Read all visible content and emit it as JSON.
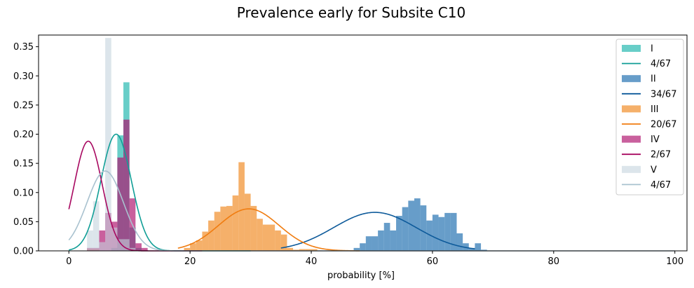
{
  "chart_data": {
    "type": "histogram",
    "title": "Prevalence early for Subsite C10",
    "xlabel": "probability [%]",
    "ylabel": "",
    "xlim": [
      -5,
      102
    ],
    "ylim": [
      0,
      0.37
    ],
    "xticks": [
      0,
      20,
      40,
      60,
      80,
      100
    ],
    "yticks": [
      0.0,
      0.05,
      0.1,
      0.15,
      0.2,
      0.25,
      0.3,
      0.35
    ],
    "ytick_labels": [
      "0.00",
      "0.05",
      "0.10",
      "0.15",
      "0.20",
      "0.25",
      "0.30",
      "0.35"
    ],
    "grid": false,
    "legend_position": "top-right",
    "series": [
      {
        "name": "I",
        "curve_label": "4/67",
        "color": "#17b3aa",
        "curve_color": "#109e96",
        "opacity": 0.65,
        "bin_width": 1.0,
        "bins": [
          [
            7,
            0.005
          ],
          [
            8,
            0.198
          ],
          [
            9,
            0.289
          ],
          [
            10,
            0.04
          ],
          [
            11,
            0.005
          ]
        ],
        "curve": {
          "mu": 7.8,
          "sigma": 2.5,
          "amp": 0.2,
          "x_range": [
            0,
            30
          ]
        }
      },
      {
        "name": "II",
        "curve_label": "34/67",
        "color": "#1f6fb0",
        "curve_color": "#0d5a9a",
        "opacity": 0.68,
        "bin_width": 1.0,
        "bins": [
          [
            47,
            0.005
          ],
          [
            48,
            0.013
          ],
          [
            49,
            0.025
          ],
          [
            50,
            0.025
          ],
          [
            51,
            0.035
          ],
          [
            52,
            0.048
          ],
          [
            53,
            0.035
          ],
          [
            54,
            0.06
          ],
          [
            55,
            0.075
          ],
          [
            56,
            0.086
          ],
          [
            57,
            0.09
          ],
          [
            58,
            0.078
          ],
          [
            59,
            0.052
          ],
          [
            60,
            0.062
          ],
          [
            61,
            0.058
          ],
          [
            62,
            0.065
          ],
          [
            63,
            0.065
          ],
          [
            64,
            0.03
          ],
          [
            65,
            0.013
          ],
          [
            66,
            0.005
          ],
          [
            67,
            0.013
          ],
          [
            68,
            0.002
          ]
        ],
        "curve": {
          "mu": 50.5,
          "sigma": 6.8,
          "amp": 0.066,
          "x_range": [
            35,
            67
          ]
        }
      },
      {
        "name": "III",
        "curve_label": "20/67",
        "color": "#f08a24",
        "curve_color": "#f07c10",
        "opacity": 0.68,
        "bin_width": 1.0,
        "bins": [
          [
            3,
            0.003
          ],
          [
            4,
            0.003
          ],
          [
            19,
            0.005
          ],
          [
            20,
            0.013
          ],
          [
            21,
            0.018
          ],
          [
            22,
            0.033
          ],
          [
            23,
            0.052
          ],
          [
            24,
            0.067
          ],
          [
            25,
            0.076
          ],
          [
            26,
            0.077
          ],
          [
            27,
            0.095
          ],
          [
            28,
            0.152
          ],
          [
            29,
            0.098
          ],
          [
            30,
            0.077
          ],
          [
            31,
            0.055
          ],
          [
            32,
            0.045
          ],
          [
            33,
            0.045
          ],
          [
            34,
            0.035
          ],
          [
            35,
            0.028
          ],
          [
            36,
            0.005
          ],
          [
            37,
            0.002
          ],
          [
            38,
            0.003
          ],
          [
            39,
            0.003
          ],
          [
            40,
            0.003
          ]
        ],
        "curve": {
          "mu": 29.7,
          "sigma": 5.0,
          "amp": 0.072,
          "x_range": [
            18,
            48
          ]
        }
      },
      {
        "name": "IV",
        "curve_label": "2/67",
        "color": "#b0146e",
        "curve_color": "#a80860",
        "opacity": 0.68,
        "bin_width": 1.0,
        "bins": [
          [
            3,
            0.005
          ],
          [
            4,
            0.005
          ],
          [
            5,
            0.035
          ],
          [
            6,
            0.065
          ],
          [
            7,
            0.05
          ],
          [
            8,
            0.16
          ],
          [
            9,
            0.225
          ],
          [
            10,
            0.09
          ],
          [
            11,
            0.013
          ],
          [
            12,
            0.005
          ]
        ],
        "curve": {
          "mu": 3.2,
          "sigma": 2.3,
          "amp": 0.188,
          "x_range": [
            0,
            22
          ]
        }
      },
      {
        "name": "V",
        "curve_label": "4/67",
        "color": "#c4d3de",
        "curve_color": "#a9c2cf",
        "opacity": 0.6,
        "bin_width": 1.0,
        "bins": [
          [
            3,
            0.035
          ],
          [
            4,
            0.085
          ],
          [
            5,
            0.015
          ],
          [
            6,
            0.365
          ],
          [
            7,
            0.04
          ],
          [
            8,
            0.02
          ],
          [
            9,
            0.02
          ],
          [
            10,
            0.005
          ]
        ],
        "curve": {
          "mu": 6.0,
          "sigma": 3.0,
          "amp": 0.137,
          "x_range": [
            0,
            100
          ]
        }
      }
    ]
  }
}
